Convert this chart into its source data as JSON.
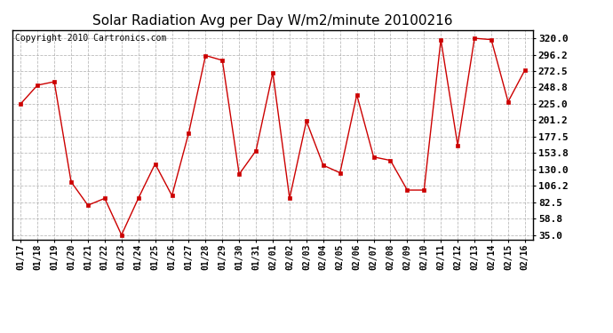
{
  "title": "Solar Radiation Avg per Day W/m2/minute 20100216",
  "copyright": "Copyright 2010 Cartronics.com",
  "dates": [
    "01/17",
    "01/18",
    "01/19",
    "01/20",
    "01/21",
    "01/22",
    "01/23",
    "01/24",
    "01/25",
    "01/26",
    "01/27",
    "01/28",
    "01/29",
    "01/30",
    "01/31",
    "02/01",
    "02/02",
    "02/03",
    "02/04",
    "02/05",
    "02/06",
    "02/07",
    "02/08",
    "02/09",
    "02/10",
    "02/11",
    "02/12",
    "02/13",
    "02/14",
    "02/15",
    "02/16"
  ],
  "values": [
    225.0,
    252.0,
    257.0,
    112.0,
    78.0,
    88.0,
    35.0,
    88.0,
    138.0,
    92.0,
    183.0,
    295.0,
    288.0,
    123.0,
    157.0,
    270.0,
    88.0,
    200.0,
    136.0,
    125.0,
    238.0,
    148.0,
    143.0,
    100.0,
    100.0,
    318.0,
    165.0,
    320.0,
    318.0,
    228.0,
    274.0
  ],
  "line_color": "#cc0000",
  "marker": "s",
  "marker_size": 2.5,
  "background_color": "#ffffff",
  "grid_color": "#aaaaaa",
  "yticks": [
    35.0,
    58.8,
    82.5,
    106.2,
    130.0,
    153.8,
    177.5,
    201.2,
    225.0,
    248.8,
    272.5,
    296.2,
    320.0
  ],
  "ylim": [
    28.0,
    332.0
  ],
  "title_fontsize": 11,
  "copyright_fontsize": 7,
  "tick_fontsize": 8,
  "xtick_fontsize": 7
}
